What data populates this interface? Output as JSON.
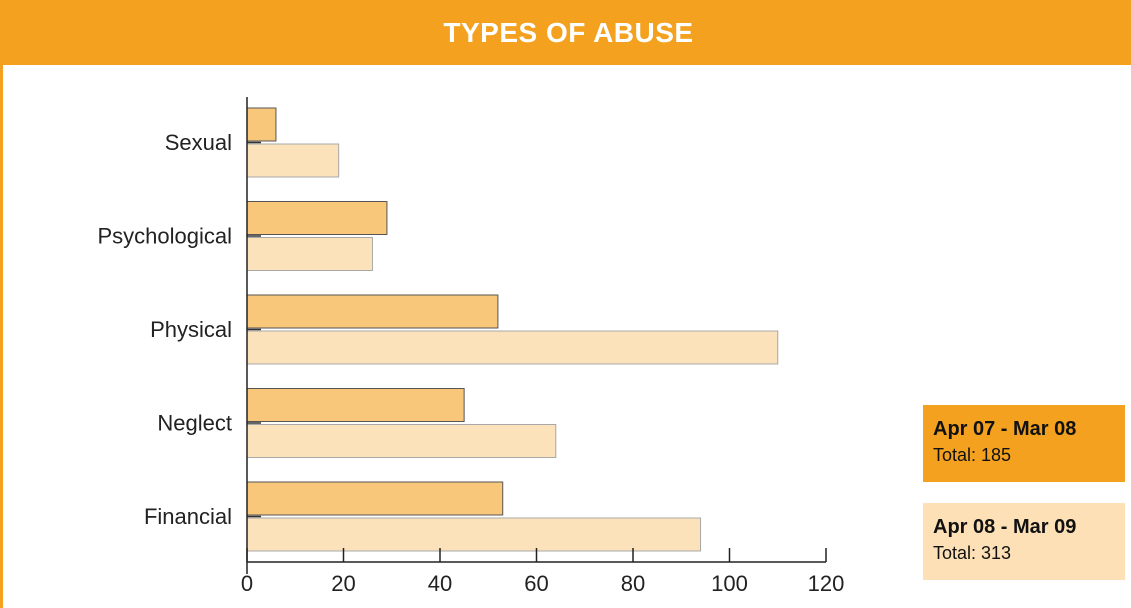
{
  "header": {
    "title": "TYPES OF ABUSE"
  },
  "colors": {
    "header_bg": "#f3a11e",
    "series_0": "#f9c77a",
    "series_1": "#fbe2ba",
    "legend_0_bg": "#f3a11e",
    "legend_1_bg": "#fde0b6"
  },
  "legend": [
    {
      "label": "Apr 07 - Mar 08",
      "total": "Total: 185"
    },
    {
      "label": "Apr 08 - Mar 09",
      "total": "Total: 313"
    }
  ],
  "chart_data": {
    "type": "bar",
    "orientation": "horizontal",
    "title": "TYPES OF ABUSE",
    "categories": [
      "Sexual",
      "Psychological",
      "Physical",
      "Neglect",
      "Financial"
    ],
    "series": [
      {
        "name": "Apr 07 - Mar 08",
        "values": [
          6,
          29,
          52,
          45,
          53
        ]
      },
      {
        "name": "Apr 08 - Mar 09",
        "values": [
          19,
          26,
          110,
          64,
          94
        ]
      }
    ],
    "xlim": [
      0,
      120
    ],
    "xticks": [
      "0",
      "20",
      "40",
      "60",
      "80",
      "100",
      "120"
    ],
    "grid": false,
    "legend_position": "bottom-right"
  }
}
